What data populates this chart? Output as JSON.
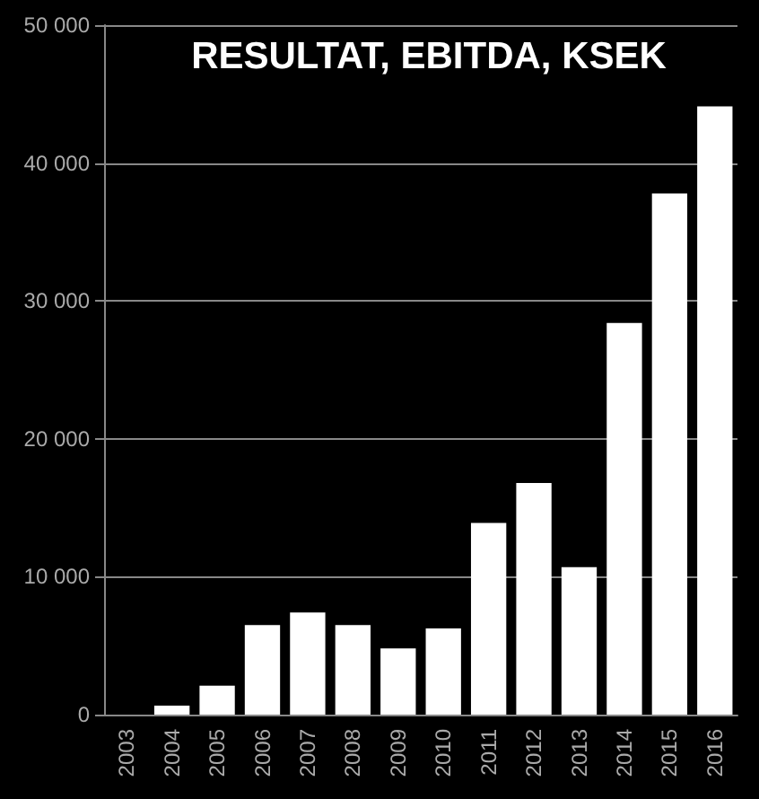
{
  "chart_data": {
    "type": "bar",
    "title": "RESULTAT, EBITDA, KSEK",
    "categories": [
      "2003",
      "2004",
      "2005",
      "2006",
      "2007",
      "2008",
      "2009",
      "2010",
      "2011",
      "2012",
      "2013",
      "2014",
      "2015",
      "2016"
    ],
    "values": [
      0,
      650,
      2100,
      6500,
      7400,
      6500,
      4800,
      6250,
      13900,
      16800,
      10700,
      28400,
      37800,
      44100
    ],
    "color": "#ffffff",
    "ylim": [
      0,
      50000
    ],
    "yticks": [
      0,
      {
        "value": 10000,
        "label": "10 000"
      },
      {
        "value": 20000,
        "label": "20 000"
      },
      {
        "value": 30000,
        "label": "30 000"
      },
      {
        "value": 40000,
        "label": "40 000"
      },
      {
        "value": 50000,
        "label": "50 000"
      }
    ],
    "grid": "y"
  }
}
